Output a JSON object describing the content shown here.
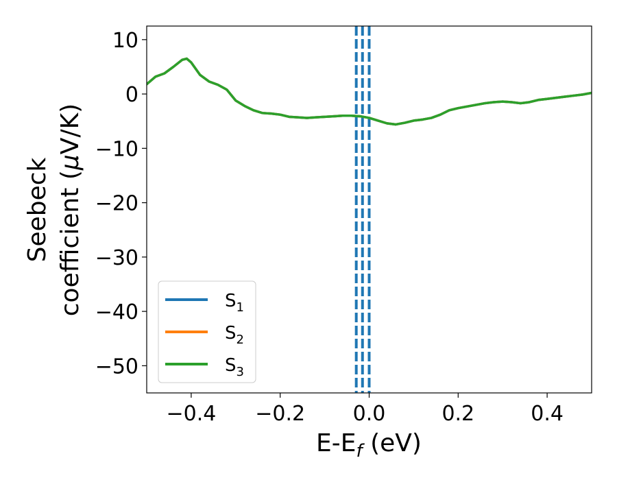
{
  "chart_data": {
    "type": "line",
    "xlabel": "E-E",
    "xlabel_sub": "f",
    "xlabel_unit": " (eV)",
    "ylabel_line1": "Seebeck",
    "ylabel_line2": "coefficient  (",
    "ylabel_mu": "μ",
    "ylabel_unit": "V/K)",
    "xlim": [
      -0.5,
      0.5
    ],
    "ylim": [
      -55,
      12.5
    ],
    "xticks": [
      -0.4,
      -0.2,
      0.0,
      0.2,
      0.4
    ],
    "xtick_labels": [
      "−0.4",
      "−0.2",
      "0.0",
      "0.2",
      "0.4"
    ],
    "yticks": [
      10,
      0,
      -10,
      -20,
      -30,
      -40,
      -50
    ],
    "ytick_labels": [
      "10",
      "0",
      "−10",
      "−20",
      "−30",
      "−40",
      "−50"
    ],
    "grid": false,
    "legend_position": "lower-left",
    "series": [
      {
        "name": "S",
        "sub": "1",
        "color": "#1f77b4",
        "x": [
          -0.5,
          -0.48,
          -0.46,
          -0.44,
          -0.42,
          -0.41,
          -0.4,
          -0.38,
          -0.36,
          -0.34,
          -0.32,
          -0.3,
          -0.28,
          -0.26,
          -0.24,
          -0.22,
          -0.2,
          -0.18,
          -0.16,
          -0.14,
          -0.12,
          -0.1,
          -0.08,
          -0.06,
          -0.04,
          -0.02,
          0.0,
          0.02,
          0.04,
          0.06,
          0.08,
          0.1,
          0.12,
          0.14,
          0.16,
          0.18,
          0.2,
          0.22,
          0.24,
          0.26,
          0.28,
          0.3,
          0.32,
          0.34,
          0.36,
          0.38,
          0.4,
          0.42,
          0.44,
          0.46,
          0.48,
          0.5
        ],
        "y": [
          1.8,
          3.2,
          3.8,
          5.0,
          6.3,
          6.5,
          5.8,
          3.5,
          2.3,
          1.7,
          0.8,
          -1.2,
          -2.2,
          -3.0,
          -3.5,
          -3.6,
          -3.8,
          -4.2,
          -4.3,
          -4.4,
          -4.3,
          -4.2,
          -4.1,
          -4.0,
          -4.0,
          -4.1,
          -4.4,
          -4.9,
          -5.4,
          -5.6,
          -5.3,
          -4.9,
          -4.7,
          -4.4,
          -3.8,
          -3.0,
          -2.6,
          -2.3,
          -2.0,
          -1.7,
          -1.5,
          -1.4,
          -1.5,
          -1.7,
          -1.5,
          -1.1,
          -0.9,
          -0.7,
          -0.5,
          -0.3,
          -0.1,
          0.2
        ]
      },
      {
        "name": "S",
        "sub": "2",
        "color": "#ff7f0e",
        "x": [
          -0.5,
          -0.48,
          -0.46,
          -0.44,
          -0.42,
          -0.41,
          -0.4,
          -0.38,
          -0.36,
          -0.34,
          -0.32,
          -0.3,
          -0.28,
          -0.26,
          -0.24,
          -0.22,
          -0.2,
          -0.18,
          -0.16,
          -0.14,
          -0.12,
          -0.1,
          -0.08,
          -0.06,
          -0.04,
          -0.02,
          0.0,
          0.02,
          0.04,
          0.06,
          0.08,
          0.1,
          0.12,
          0.14,
          0.16,
          0.18,
          0.2,
          0.22,
          0.24,
          0.26,
          0.28,
          0.3,
          0.32,
          0.34,
          0.36,
          0.38,
          0.4,
          0.42,
          0.44,
          0.46,
          0.48,
          0.5
        ],
        "y": [
          1.8,
          3.2,
          3.8,
          5.0,
          6.3,
          6.5,
          5.8,
          3.5,
          2.3,
          1.7,
          0.8,
          -1.2,
          -2.2,
          -3.0,
          -3.5,
          -3.6,
          -3.8,
          -4.2,
          -4.3,
          -4.4,
          -4.3,
          -4.2,
          -4.1,
          -4.0,
          -4.0,
          -4.1,
          -4.4,
          -4.9,
          -5.4,
          -5.6,
          -5.3,
          -4.9,
          -4.7,
          -4.4,
          -3.8,
          -3.0,
          -2.6,
          -2.3,
          -2.0,
          -1.7,
          -1.5,
          -1.4,
          -1.5,
          -1.7,
          -1.5,
          -1.1,
          -0.9,
          -0.7,
          -0.5,
          -0.3,
          -0.1,
          0.2
        ]
      },
      {
        "name": "S",
        "sub": "3",
        "color": "#2ca02c",
        "x": [
          -0.5,
          -0.48,
          -0.46,
          -0.44,
          -0.42,
          -0.41,
          -0.4,
          -0.38,
          -0.36,
          -0.34,
          -0.32,
          -0.3,
          -0.28,
          -0.26,
          -0.24,
          -0.22,
          -0.2,
          -0.18,
          -0.16,
          -0.14,
          -0.12,
          -0.1,
          -0.08,
          -0.06,
          -0.04,
          -0.02,
          0.0,
          0.02,
          0.04,
          0.06,
          0.08,
          0.1,
          0.12,
          0.14,
          0.16,
          0.18,
          0.2,
          0.22,
          0.24,
          0.26,
          0.28,
          0.3,
          0.32,
          0.34,
          0.36,
          0.38,
          0.4,
          0.42,
          0.44,
          0.46,
          0.48,
          0.5
        ],
        "y": [
          1.8,
          3.2,
          3.8,
          5.0,
          6.3,
          6.5,
          5.8,
          3.5,
          2.3,
          1.7,
          0.8,
          -1.2,
          -2.2,
          -3.0,
          -3.5,
          -3.6,
          -3.8,
          -4.2,
          -4.3,
          -4.4,
          -4.3,
          -4.2,
          -4.1,
          -4.0,
          -4.0,
          -4.1,
          -4.4,
          -4.9,
          -5.4,
          -5.6,
          -5.3,
          -4.9,
          -4.7,
          -4.4,
          -3.8,
          -3.0,
          -2.6,
          -2.3,
          -2.0,
          -1.7,
          -1.5,
          -1.4,
          -1.5,
          -1.7,
          -1.5,
          -1.1,
          -0.9,
          -0.7,
          -0.5,
          -0.3,
          -0.1,
          0.2
        ]
      }
    ],
    "vlines": [
      {
        "x": -0.029,
        "color": "#1f77b4",
        "style": "dashed"
      },
      {
        "x": -0.015,
        "color": "#1f77b4",
        "style": "dashed"
      },
      {
        "x": 0.0,
        "color": "#000000",
        "style": "dashed"
      },
      {
        "x": 0.0,
        "color": "#1f77b4",
        "style": "dashed"
      }
    ]
  }
}
